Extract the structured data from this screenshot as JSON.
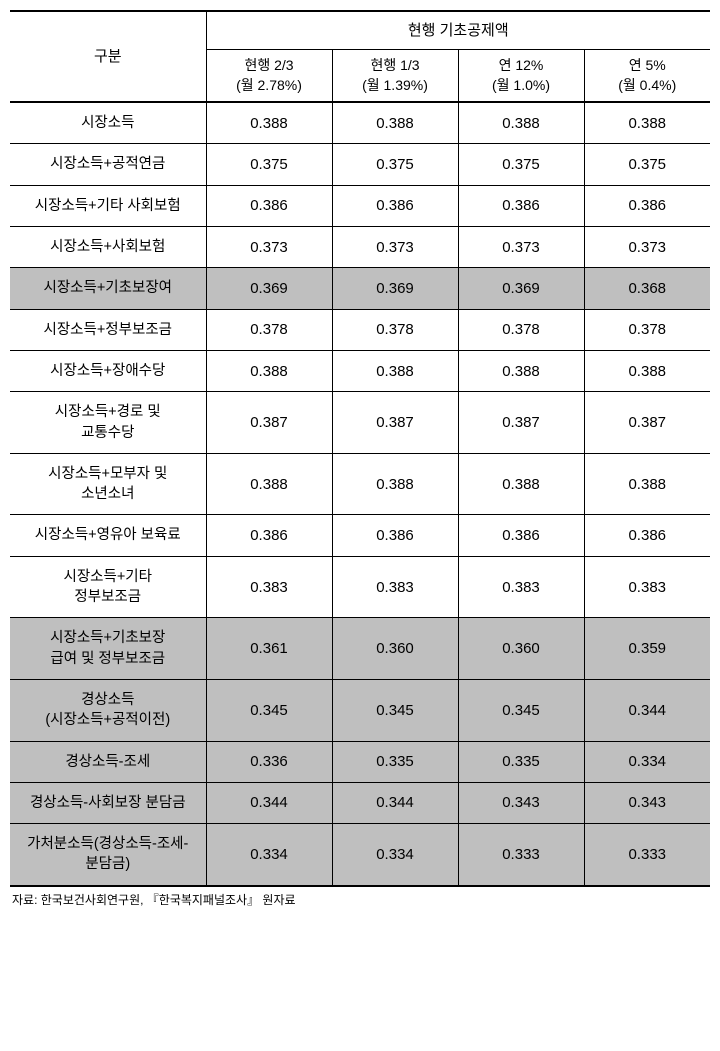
{
  "table": {
    "header_category": "구분",
    "header_main": "현행 기초공제액",
    "columns": [
      {
        "line1": "현행 2/3",
        "line2": "(월 2.78%)"
      },
      {
        "line1": "현행 1/3",
        "line2": "(월 1.39%)"
      },
      {
        "line1": "연 12%",
        "line2": "(월 1.0%)"
      },
      {
        "line1": "연 5%",
        "line2": "(월 0.4%)"
      }
    ],
    "rows": [
      {
        "label": "시장소득",
        "values": [
          "0.388",
          "0.388",
          "0.388",
          "0.388"
        ],
        "highlight": false
      },
      {
        "label": "시장소득+공적연금",
        "values": [
          "0.375",
          "0.375",
          "0.375",
          "0.375"
        ],
        "highlight": false
      },
      {
        "label": "시장소득+기타 사회보험",
        "values": [
          "0.386",
          "0.386",
          "0.386",
          "0.386"
        ],
        "highlight": false
      },
      {
        "label": "시장소득+사회보험",
        "values": [
          "0.373",
          "0.373",
          "0.373",
          "0.373"
        ],
        "highlight": false
      },
      {
        "label": "시장소득+기초보장여",
        "values": [
          "0.369",
          "0.369",
          "0.369",
          "0.368"
        ],
        "highlight": true
      },
      {
        "label": "시장소득+정부보조금",
        "values": [
          "0.378",
          "0.378",
          "0.378",
          "0.378"
        ],
        "highlight": false
      },
      {
        "label": "시장소득+장애수당",
        "values": [
          "0.388",
          "0.388",
          "0.388",
          "0.388"
        ],
        "highlight": false
      },
      {
        "label": "시장소득+경로 및\n교통수당",
        "values": [
          "0.387",
          "0.387",
          "0.387",
          "0.387"
        ],
        "highlight": false
      },
      {
        "label": "시장소득+모부자 및\n소년소녀",
        "values": [
          "0.388",
          "0.388",
          "0.388",
          "0.388"
        ],
        "highlight": false
      },
      {
        "label": "시장소득+영유아 보육료",
        "values": [
          "0.386",
          "0.386",
          "0.386",
          "0.386"
        ],
        "highlight": false
      },
      {
        "label": "시장소득+기타\n정부보조금",
        "values": [
          "0.383",
          "0.383",
          "0.383",
          "0.383"
        ],
        "highlight": false
      },
      {
        "label": "시장소득+기초보장\n급여 및 정부보조금",
        "values": [
          "0.361",
          "0.360",
          "0.360",
          "0.359"
        ],
        "highlight": true
      },
      {
        "label": "경상소득\n(시장소득+공적이전)",
        "values": [
          "0.345",
          "0.345",
          "0.345",
          "0.344"
        ],
        "highlight": true
      },
      {
        "label": "경상소득-조세",
        "values": [
          "0.336",
          "0.335",
          "0.335",
          "0.334"
        ],
        "highlight": true
      },
      {
        "label": "경상소득-사회보장 분담금",
        "values": [
          "0.344",
          "0.344",
          "0.343",
          "0.343"
        ],
        "highlight": true
      },
      {
        "label": "가처분소득(경상소득-조세-\n분담금)",
        "values": [
          "0.334",
          "0.334",
          "0.333",
          "0.333"
        ],
        "highlight": true
      }
    ]
  },
  "footnote": "자료: 한국보건사회연구원, 『한국복지패널조사』 원자료"
}
